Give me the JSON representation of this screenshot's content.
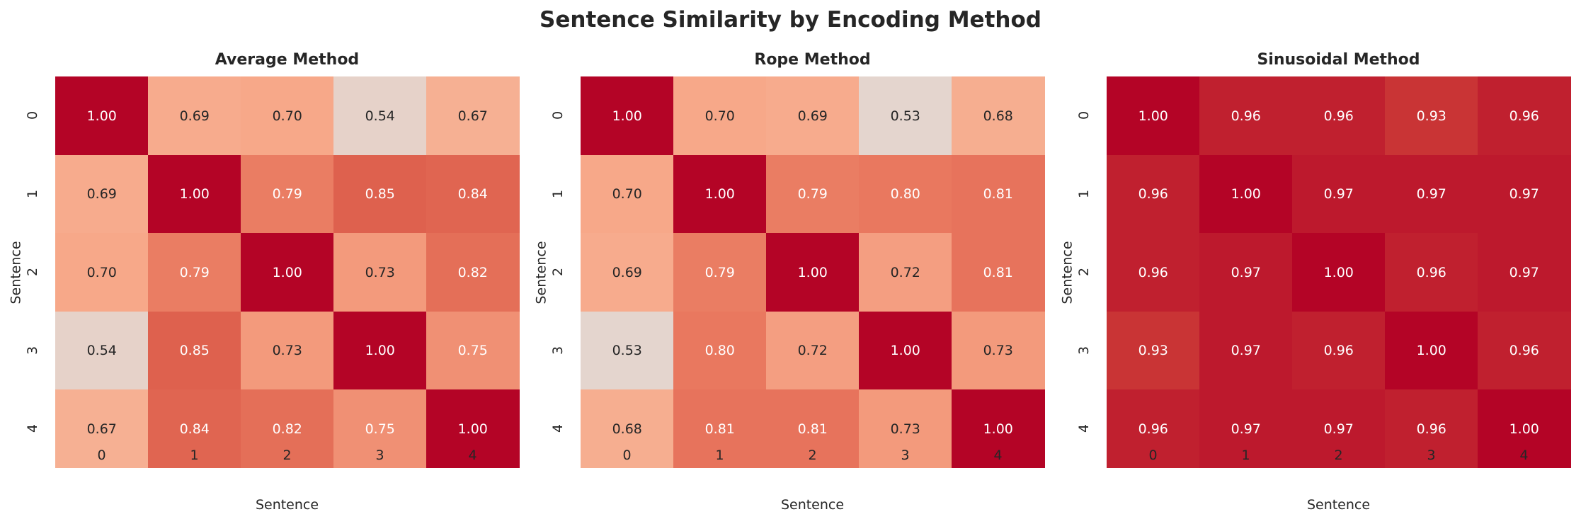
{
  "title": "Sentence Similarity by Encoding Method",
  "chart_data": [
    {
      "type": "heatmap",
      "title": "Average Method",
      "xlabel": "Sentence",
      "ylabel": "Sentence",
      "x_ticks": [
        "0",
        "1",
        "2",
        "3",
        "4"
      ],
      "y_ticks": [
        "0",
        "1",
        "2",
        "3",
        "4"
      ],
      "colormap": "coolwarm",
      "colorbar": false,
      "values": [
        [
          1.0,
          0.69,
          0.7,
          0.54,
          0.67
        ],
        [
          0.69,
          1.0,
          0.79,
          0.85,
          0.84
        ],
        [
          0.7,
          0.79,
          1.0,
          0.73,
          0.82
        ],
        [
          0.54,
          0.85,
          0.73,
          1.0,
          0.75
        ],
        [
          0.67,
          0.84,
          0.82,
          0.75,
          1.0
        ]
      ]
    },
    {
      "type": "heatmap",
      "title": "Rope Method",
      "xlabel": "Sentence",
      "ylabel": "Sentence",
      "x_ticks": [
        "0",
        "1",
        "2",
        "3",
        "4"
      ],
      "y_ticks": [
        "0",
        "1",
        "2",
        "3",
        "4"
      ],
      "colormap": "coolwarm",
      "colorbar": false,
      "values": [
        [
          1.0,
          0.7,
          0.69,
          0.53,
          0.68
        ],
        [
          0.7,
          1.0,
          0.79,
          0.8,
          0.81
        ],
        [
          0.69,
          0.79,
          1.0,
          0.72,
          0.81
        ],
        [
          0.53,
          0.8,
          0.72,
          1.0,
          0.73
        ],
        [
          0.68,
          0.81,
          0.81,
          0.73,
          1.0
        ]
      ]
    },
    {
      "type": "heatmap",
      "title": "Sinusoidal Method",
      "xlabel": "Sentence",
      "ylabel": "Sentence",
      "x_ticks": [
        "0",
        "1",
        "2",
        "3",
        "4"
      ],
      "y_ticks": [
        "0",
        "1",
        "2",
        "3",
        "4"
      ],
      "colormap": "coolwarm",
      "colorbar": false,
      "values": [
        [
          1.0,
          0.96,
          0.96,
          0.93,
          0.96
        ],
        [
          0.96,
          1.0,
          0.97,
          0.97,
          0.97
        ],
        [
          0.96,
          0.97,
          1.0,
          0.96,
          0.97
        ],
        [
          0.93,
          0.97,
          0.96,
          1.0,
          0.96
        ],
        [
          0.96,
          0.97,
          0.97,
          0.96,
          1.0
        ]
      ]
    }
  ]
}
